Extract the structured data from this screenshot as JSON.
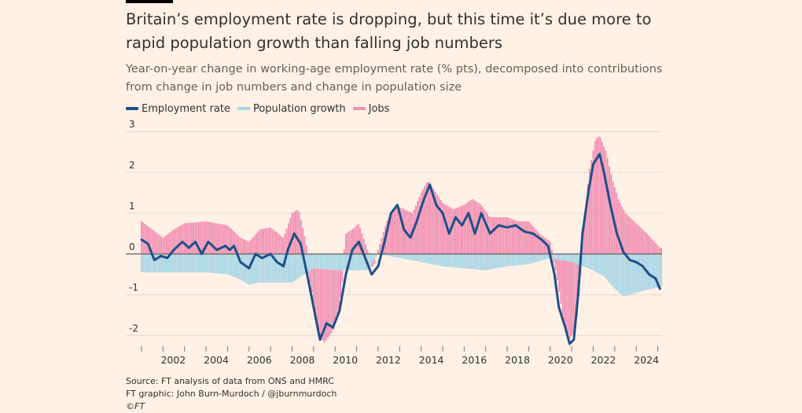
{
  "title": "Britain’s employment rate is dropping, but this time it’s due more to rapid population growth than falling job numbers",
  "subtitle": "Year-on-year change in working-age employment rate (% pts), decomposed into contributions from change in job numbers and change in population size",
  "colors": {
    "background": "#fff1e5",
    "employment": "#1e4f8a",
    "population": "#a8d6e6",
    "jobs": "#f291b3",
    "gridline": "#e2d9d2",
    "zero_line": "#66605c",
    "text": "#33302e"
  },
  "legend": [
    {
      "label": "Employment rate",
      "color": "#1e4f8a"
    },
    {
      "label": "Population growth",
      "color": "#a8d6e6"
    },
    {
      "label": "Jobs",
      "color": "#f291b3"
    }
  ],
  "footer": {
    "source": "Source: FT analysis of data from ONS and HMRC",
    "graphic": "FT graphic: John Burn-Murdoch / @jburnmurdoch",
    "credit": "©FT"
  },
  "chart_data": {
    "type": "bar",
    "subtype": "stacked bars with line overlay",
    "x_range": [
      2001.0,
      2025.2
    ],
    "ylim": [
      -2.2,
      3.1
    ],
    "yticks": [
      -2,
      -1,
      0,
      1,
      2,
      3
    ],
    "ytick_labels": [
      "-2",
      "-1",
      "0",
      "1",
      "2",
      "3"
    ],
    "xticks": [
      2002,
      2004,
      2006,
      2008,
      2010,
      2012,
      2014,
      2016,
      2018,
      2020,
      2022,
      2024
    ],
    "xtick_labels": [
      "2002",
      "2004",
      "2006",
      "2008",
      "2010",
      "2012",
      "2014",
      "2016",
      "2018",
      "2020",
      "2022",
      "2024"
    ],
    "legend_position": "top-left",
    "grid": true,
    "series": [
      {
        "name": "Employment rate",
        "type": "line",
        "points": [
          [
            2001.0,
            0.35
          ],
          [
            2001.3,
            0.25
          ],
          [
            2001.6,
            -0.15
          ],
          [
            2001.9,
            -0.05
          ],
          [
            2002.2,
            -0.1
          ],
          [
            2002.5,
            0.1
          ],
          [
            2002.9,
            0.3
          ],
          [
            2003.2,
            0.15
          ],
          [
            2003.5,
            0.3
          ],
          [
            2003.8,
            0.0
          ],
          [
            2004.1,
            0.3
          ],
          [
            2004.5,
            0.1
          ],
          [
            2004.9,
            0.2
          ],
          [
            2005.1,
            0.1
          ],
          [
            2005.3,
            0.2
          ],
          [
            2005.6,
            -0.2
          ],
          [
            2006.0,
            -0.35
          ],
          [
            2006.3,
            0.0
          ],
          [
            2006.6,
            -0.1
          ],
          [
            2007.0,
            0.0
          ],
          [
            2007.3,
            -0.2
          ],
          [
            2007.6,
            -0.3
          ],
          [
            2007.8,
            0.1
          ],
          [
            2008.1,
            0.5
          ],
          [
            2008.4,
            0.25
          ],
          [
            2008.7,
            -0.5
          ],
          [
            2009.0,
            -1.3
          ],
          [
            2009.3,
            -2.1
          ],
          [
            2009.6,
            -1.7
          ],
          [
            2009.9,
            -1.8
          ],
          [
            2010.2,
            -1.4
          ],
          [
            2010.5,
            -0.5
          ],
          [
            2010.8,
            0.1
          ],
          [
            2011.1,
            0.3
          ],
          [
            2011.4,
            -0.1
          ],
          [
            2011.7,
            -0.5
          ],
          [
            2012.0,
            -0.3
          ],
          [
            2012.3,
            0.3
          ],
          [
            2012.6,
            1.0
          ],
          [
            2012.9,
            1.2
          ],
          [
            2013.2,
            0.6
          ],
          [
            2013.5,
            0.4
          ],
          [
            2013.8,
            0.8
          ],
          [
            2014.1,
            1.3
          ],
          [
            2014.4,
            1.7
          ],
          [
            2014.7,
            1.2
          ],
          [
            2015.0,
            1.0
          ],
          [
            2015.3,
            0.5
          ],
          [
            2015.6,
            0.9
          ],
          [
            2015.9,
            0.7
          ],
          [
            2016.2,
            1.0
          ],
          [
            2016.5,
            0.5
          ],
          [
            2016.8,
            1.0
          ],
          [
            2017.2,
            0.5
          ],
          [
            2017.6,
            0.7
          ],
          [
            2018.0,
            0.65
          ],
          [
            2018.4,
            0.7
          ],
          [
            2018.8,
            0.55
          ],
          [
            2019.2,
            0.5
          ],
          [
            2019.6,
            0.35
          ],
          [
            2019.9,
            0.2
          ],
          [
            2020.2,
            -0.5
          ],
          [
            2020.4,
            -1.3
          ],
          [
            2020.7,
            -1.8
          ],
          [
            2020.9,
            -2.2
          ],
          [
            2021.1,
            -2.1
          ],
          [
            2021.3,
            -1.0
          ],
          [
            2021.5,
            0.5
          ],
          [
            2021.8,
            1.6
          ],
          [
            2022.0,
            2.2
          ],
          [
            2022.3,
            2.45
          ],
          [
            2022.5,
            2.0
          ],
          [
            2022.8,
            1.2
          ],
          [
            2023.1,
            0.5
          ],
          [
            2023.4,
            0.05
          ],
          [
            2023.7,
            -0.15
          ],
          [
            2024.0,
            -0.2
          ],
          [
            2024.3,
            -0.3
          ],
          [
            2024.6,
            -0.5
          ],
          [
            2024.9,
            -0.6
          ],
          [
            2025.1,
            -0.85
          ]
        ]
      },
      {
        "name": "Population growth",
        "type": "bar",
        "points": [
          [
            2001.0,
            -0.45
          ],
          [
            2002.0,
            -0.45
          ],
          [
            2003.0,
            -0.45
          ],
          [
            2004.0,
            -0.45
          ],
          [
            2005.0,
            -0.5
          ],
          [
            2005.5,
            -0.6
          ],
          [
            2006.0,
            -0.75
          ],
          [
            2006.5,
            -0.7
          ],
          [
            2007.0,
            -0.7
          ],
          [
            2008.0,
            -0.7
          ],
          [
            2009.0,
            -0.35
          ],
          [
            2010.0,
            -0.4
          ],
          [
            2011.0,
            -0.4
          ],
          [
            2011.5,
            -0.4
          ],
          [
            2012.0,
            0.0
          ],
          [
            2013.0,
            -0.1
          ],
          [
            2014.0,
            -0.2
          ],
          [
            2015.0,
            -0.3
          ],
          [
            2016.0,
            -0.35
          ],
          [
            2017.0,
            -0.4
          ],
          [
            2017.5,
            -0.35
          ],
          [
            2018.0,
            -0.3
          ],
          [
            2019.0,
            -0.25
          ],
          [
            2020.0,
            -0.1
          ],
          [
            2021.0,
            -0.2
          ],
          [
            2022.0,
            -0.4
          ],
          [
            2022.5,
            -0.55
          ],
          [
            2023.0,
            -0.85
          ],
          [
            2023.4,
            -1.05
          ],
          [
            2024.0,
            -0.95
          ],
          [
            2025.1,
            -0.8
          ]
        ]
      },
      {
        "name": "Jobs",
        "type": "bar",
        "points": [
          [
            2001.0,
            0.8
          ],
          [
            2001.5,
            0.6
          ],
          [
            2002.0,
            0.4
          ],
          [
            2002.5,
            0.6
          ],
          [
            2003.0,
            0.75
          ],
          [
            2004.0,
            0.8
          ],
          [
            2005.0,
            0.7
          ],
          [
            2005.6,
            0.4
          ],
          [
            2006.0,
            0.3
          ],
          [
            2006.5,
            0.6
          ],
          [
            2007.0,
            0.65
          ],
          [
            2007.6,
            0.4
          ],
          [
            2008.0,
            1.0
          ],
          [
            2008.3,
            1.1
          ],
          [
            2008.6,
            0.4
          ],
          [
            2008.9,
            -0.5
          ],
          [
            2009.2,
            -1.6
          ],
          [
            2009.5,
            -1.8
          ],
          [
            2009.9,
            -1.5
          ],
          [
            2010.2,
            -0.9
          ],
          [
            2010.5,
            0.5
          ],
          [
            2010.8,
            0.6
          ],
          [
            2011.1,
            0.75
          ],
          [
            2011.5,
            0.1
          ],
          [
            2011.8,
            -0.15
          ],
          [
            2012.0,
            0.1
          ],
          [
            2012.4,
            0.8
          ],
          [
            2012.8,
            1.2
          ],
          [
            2013.2,
            1.1
          ],
          [
            2013.6,
            1.0
          ],
          [
            2014.0,
            1.5
          ],
          [
            2014.3,
            1.8
          ],
          [
            2014.7,
            1.5
          ],
          [
            2015.0,
            1.25
          ],
          [
            2015.5,
            1.1
          ],
          [
            2016.0,
            1.2
          ],
          [
            2016.4,
            1.35
          ],
          [
            2016.8,
            1.2
          ],
          [
            2017.2,
            0.9
          ],
          [
            2017.6,
            0.9
          ],
          [
            2018.0,
            0.9
          ],
          [
            2018.5,
            0.8
          ],
          [
            2019.0,
            0.8
          ],
          [
            2019.5,
            0.5
          ],
          [
            2020.0,
            0.3
          ],
          [
            2020.3,
            -0.4
          ],
          [
            2020.6,
            -1.4
          ],
          [
            2020.9,
            -1.9
          ],
          [
            2021.2,
            -1.6
          ],
          [
            2021.5,
            0.3
          ],
          [
            2021.8,
            2.0
          ],
          [
            2022.1,
            2.8
          ],
          [
            2022.3,
            2.9
          ],
          [
            2022.6,
            2.5
          ],
          [
            2022.9,
            1.8
          ],
          [
            2023.2,
            1.3
          ],
          [
            2023.5,
            1.0
          ],
          [
            2024.0,
            0.75
          ],
          [
            2024.5,
            0.5
          ],
          [
            2025.1,
            0.15
          ]
        ]
      }
    ]
  }
}
